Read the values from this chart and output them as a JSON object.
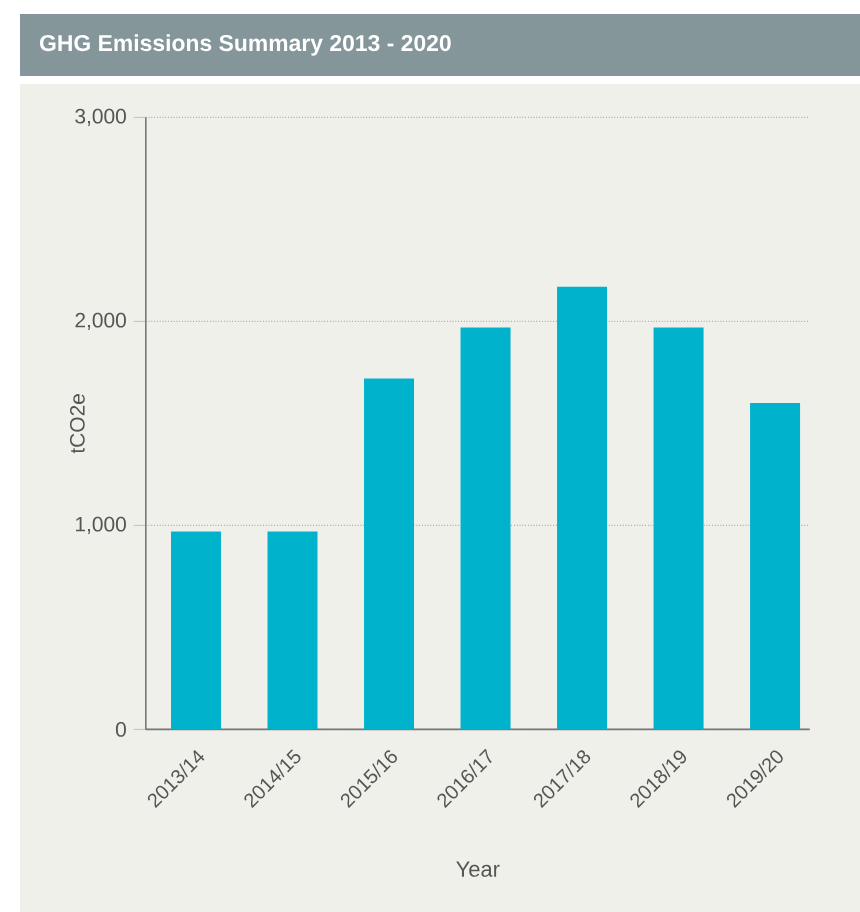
{
  "chart_data": {
    "type": "bar",
    "title": "GHG Emissions Summary 2013 - 2020",
    "xlabel": "Year",
    "ylabel": "tCO2e",
    "categories": [
      "2013/14",
      "2014/15",
      "2015/16",
      "2016/17",
      "2017/18",
      "2018/19",
      "2019/20"
    ],
    "values": [
      970,
      970,
      1720,
      1970,
      2170,
      1970,
      1600
    ],
    "color": "#00b2cc",
    "ylim": [
      0,
      3000
    ],
    "yticks": [
      0,
      {
        "value": 1000,
        "label": "1,000"
      },
      {
        "value": 2000,
        "label": "2,000"
      },
      {
        "value": 3000,
        "label": "3,000"
      }
    ],
    "grid": "y"
  }
}
